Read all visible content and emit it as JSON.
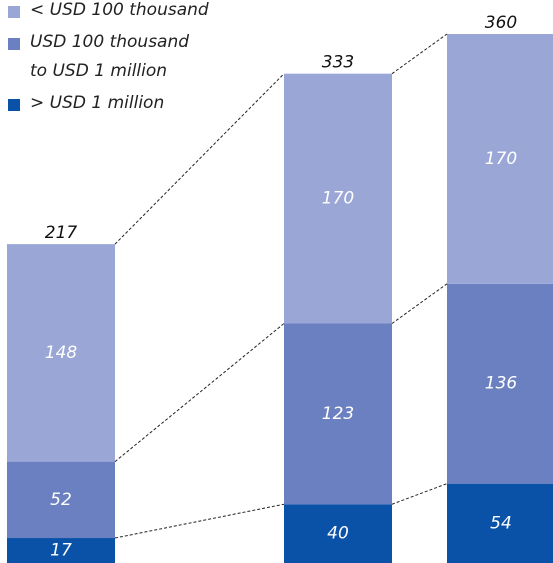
{
  "chart_data": {
    "type": "stacked-bar",
    "categories": [
      null,
      null,
      null
    ],
    "series": [
      {
        "name": "< USD 100 thousand",
        "color": "#9aa6d6",
        "values": [
          148,
          170,
          170
        ]
      },
      {
        "name": "USD 100 thousand\nto USD 1 million",
        "color": "#6b80c0",
        "values": [
          52,
          123,
          136
        ]
      },
      {
        "name": "> USD 1 million",
        "color": "#0a52a8",
        "values": [
          17,
          40,
          54
        ]
      }
    ],
    "totals": [
      217,
      333,
      360
    ],
    "legend": "top-left"
  }
}
